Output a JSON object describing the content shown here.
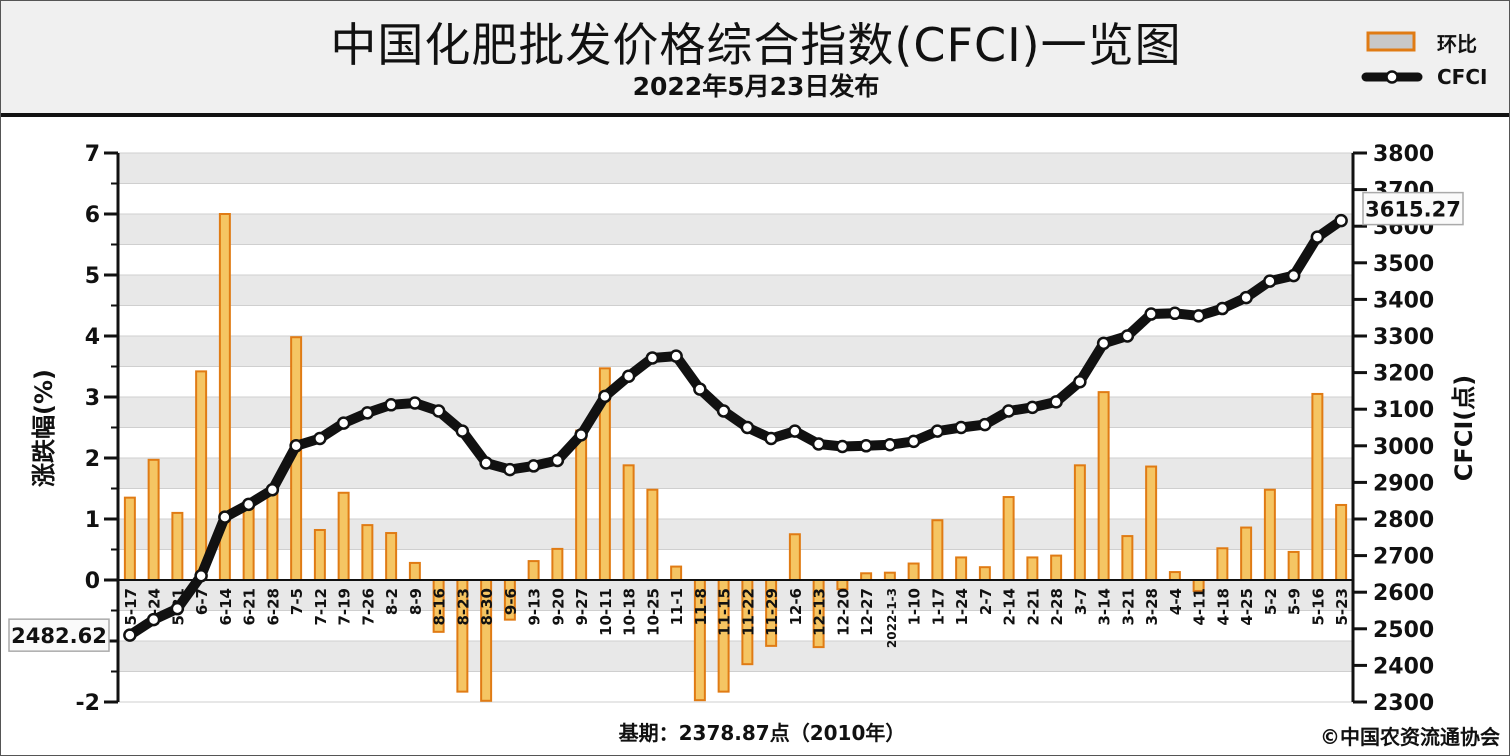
{
  "title": "中国化肥批发价格综合指数(CFCI)一览图",
  "subtitle": "2022年5月23日发布",
  "legend": {
    "bar_label": "环比",
    "line_label": "CFCI"
  },
  "footer": {
    "base_period": "基期：2378.87点（2010年）",
    "copyright": "©中国农资流通协会"
  },
  "colors": {
    "bar_fill": "#f5c563",
    "bar_stroke": "#e07b14",
    "line": "#111111",
    "marker_fill": "#ffffff",
    "plot_band": "#e8e8e8",
    "grid": "#cfcfcf"
  },
  "chart_data": {
    "type": "bar+line",
    "x_labels": [
      "5-17",
      "5-24",
      "5-31",
      "6-7",
      "6-14",
      "6-21",
      "6-28",
      "7-5",
      "7-12",
      "7-19",
      "7-26",
      "8-2",
      "8-9",
      "8-16",
      "8-23",
      "8-30",
      "9-6",
      "9-13",
      "9-20",
      "9-27",
      "10-11",
      "10-18",
      "10-25",
      "11-1",
      "11-8",
      "11-15",
      "11-22",
      "11-29",
      "12-6",
      "12-13",
      "12-20",
      "12-27",
      "2022-1-3",
      "1-10",
      "1-17",
      "1-24",
      "2-7",
      "2-14",
      "2-21",
      "2-28",
      "3-7",
      "3-14",
      "3-21",
      "3-28",
      "4-4",
      "4-11",
      "4-18",
      "4-25",
      "5-2",
      "5-9",
      "5-16",
      "5-23"
    ],
    "x_labels_visible": [
      "5-17",
      "5-24",
      "5-31",
      "6-7",
      "6-14",
      "6-21",
      "6-28",
      "7-5",
      "7-12",
      "7-19",
      "7-26",
      "8-2",
      "8-9",
      "8-16",
      "8-23",
      "8-30",
      "9-6",
      "9-13",
      "9-20",
      "9-27",
      "10-11",
      "10-18",
      "10-25",
      "11-1",
      "11-8",
      "11-15",
      "11-22",
      "11-29",
      "12-6",
      "12-13",
      "12-20",
      "12-27",
      "2022-1-3",
      "1-10",
      "1-17",
      "1-24",
      "2-7",
      "2-14",
      "2-21",
      "2-28",
      "3-7",
      "3-14",
      "3-21",
      "3-28",
      "4-4",
      "4-11",
      "4-18",
      "4-25",
      "5-2",
      "5-9",
      "5-16",
      "5-23"
    ],
    "series": [
      {
        "name": "环比",
        "type": "bar",
        "axis": "left",
        "values": [
          1.35,
          1.97,
          1.1,
          3.42,
          6.0,
          1.2,
          1.48,
          3.98,
          0.82,
          1.43,
          0.9,
          0.77,
          0.28,
          -0.85,
          -1.83,
          -1.98,
          -0.65,
          0.31,
          0.51,
          2.45,
          3.47,
          1.88,
          1.48,
          0.22,
          -1.97,
          -1.83,
          -1.38,
          -1.08,
          0.75,
          -1.1,
          -0.15,
          0.11,
          0.12,
          0.27,
          0.98,
          0.37,
          0.21,
          1.36,
          0.37,
          0.4,
          1.88,
          3.08,
          0.72,
          1.86,
          0.13,
          -0.18,
          0.52,
          0.86,
          1.48,
          0.46,
          3.05,
          1.23
        ]
      },
      {
        "name": "CFCI",
        "type": "line",
        "axis": "right",
        "values": [
          2482.62,
          2525,
          2555,
          2645,
          2805,
          2840,
          2880,
          3000,
          3020,
          3062,
          3090,
          3112,
          3117,
          3095,
          3040,
          2953,
          2935,
          2945,
          2960,
          3030,
          3135,
          3190,
          3240,
          3245,
          3155,
          3095,
          3050,
          3020,
          3040,
          3005,
          2998,
          3000,
          3003,
          3012,
          3040,
          3050,
          3058,
          3095,
          3105,
          3120,
          3175,
          3280,
          3300,
          3360,
          3362,
          3355,
          3375,
          3405,
          3450,
          3465,
          3570,
          3615.27
        ]
      }
    ],
    "y_left": {
      "label": "涨跌幅(%)",
      "min": -2,
      "max": 7,
      "ticks": [
        -2,
        -1,
        0,
        1,
        2,
        3,
        4,
        5,
        6,
        7
      ],
      "tick_labels": [
        "-2",
        "",
        "0",
        "1",
        "2",
        "3",
        "4",
        "5",
        "6",
        "7"
      ]
    },
    "y_right": {
      "label": "CFCI(点)",
      "min": 2300,
      "max": 3800,
      "ticks": [
        2300,
        2400,
        2500,
        2600,
        2700,
        2800,
        2900,
        3000,
        3100,
        3200,
        3300,
        3400,
        3500,
        3600,
        3700,
        3800
      ]
    },
    "annotations": {
      "start_value": "2482.62",
      "end_value": "3615.27"
    },
    "grid": true,
    "legend_position": "top-right"
  }
}
